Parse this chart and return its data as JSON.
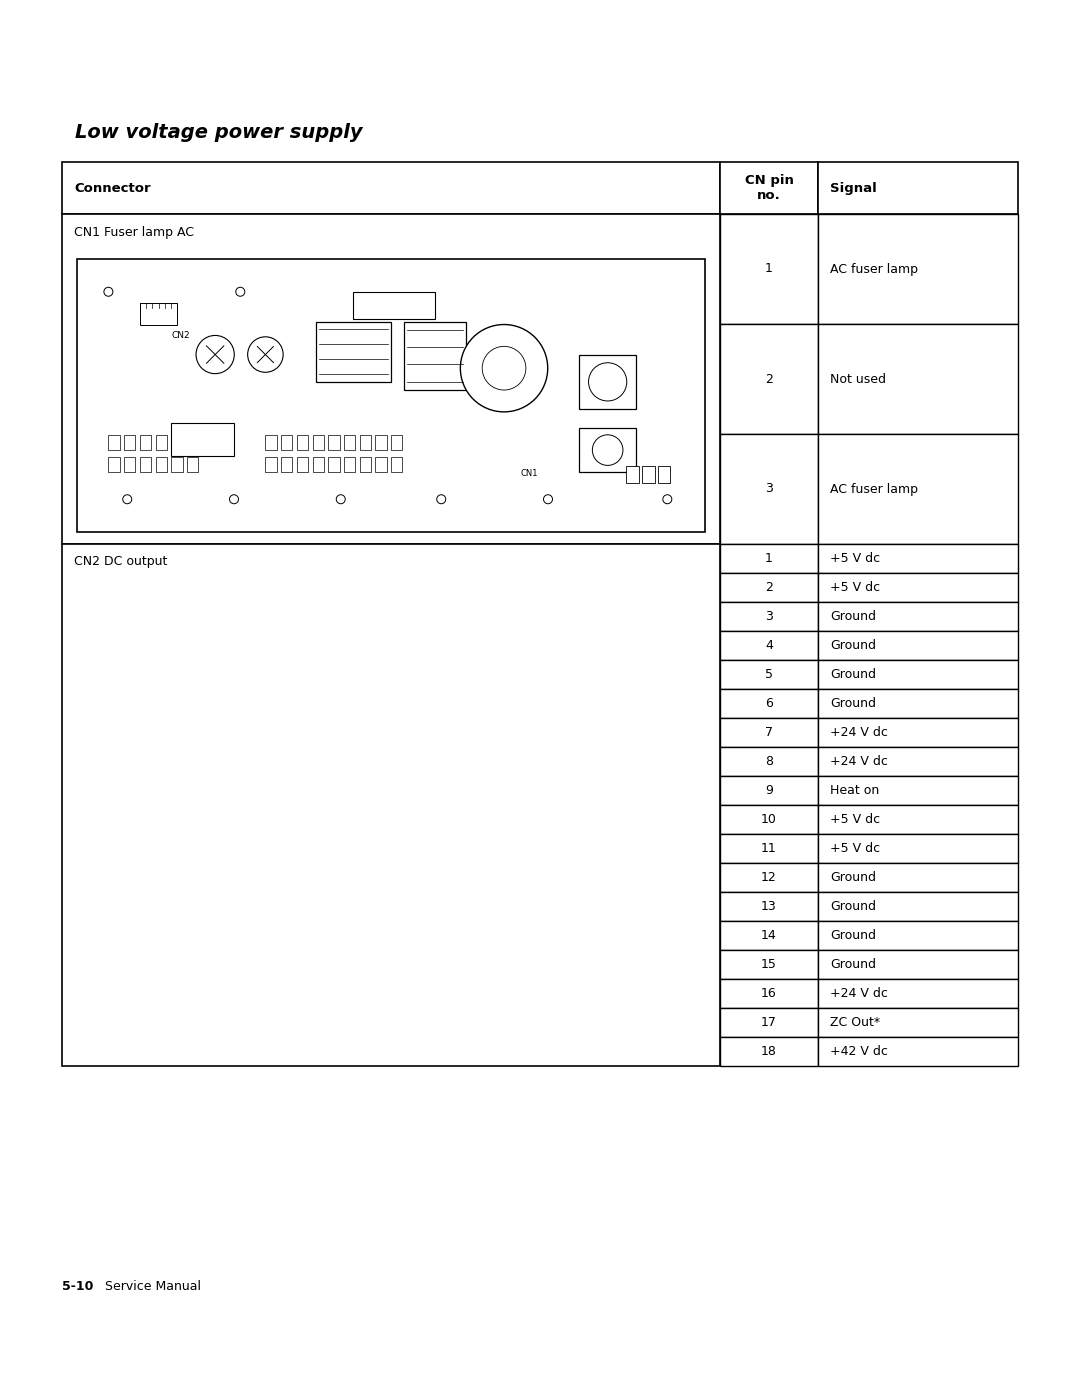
{
  "title": "Low voltage power supply",
  "page_label": "5-10",
  "page_label_suffix": "   Service Manual",
  "header_col1": "Connector",
  "header_col2": "CN pin\nno.",
  "header_col3": "Signal",
  "section1_connector": "CN1 Fuser lamp AC",
  "section1_pins": [
    {
      "pin": "1",
      "signal": "AC fuser lamp"
    },
    {
      "pin": "2",
      "signal": "Not used"
    },
    {
      "pin": "3",
      "signal": "AC fuser lamp"
    }
  ],
  "section2_connector": "CN2 DC output",
  "section2_pins": [
    {
      "pin": "1",
      "signal": "+5 V dc"
    },
    {
      "pin": "2",
      "signal": "+5 V dc"
    },
    {
      "pin": "3",
      "signal": "Ground"
    },
    {
      "pin": "4",
      "signal": "Ground"
    },
    {
      "pin": "5",
      "signal": "Ground"
    },
    {
      "pin": "6",
      "signal": "Ground"
    },
    {
      "pin": "7",
      "signal": "+24 V dc"
    },
    {
      "pin": "8",
      "signal": "+24 V dc"
    },
    {
      "pin": "9",
      "signal": "Heat on"
    },
    {
      "pin": "10",
      "signal": "+5 V dc"
    },
    {
      "pin": "11",
      "signal": "+5 V dc"
    },
    {
      "pin": "12",
      "signal": "Ground"
    },
    {
      "pin": "13",
      "signal": "Ground"
    },
    {
      "pin": "14",
      "signal": "Ground"
    },
    {
      "pin": "15",
      "signal": "Ground"
    },
    {
      "pin": "16",
      "signal": "+24 V dc"
    },
    {
      "pin": "17",
      "signal": "ZC Out*"
    },
    {
      "pin": "18",
      "signal": "+42 V dc"
    }
  ],
  "bg_color": "#ffffff",
  "border_color": "#000000",
  "header_bg": "#d0d0d0",
  "text_color": "#000000",
  "line_color": "#888888"
}
